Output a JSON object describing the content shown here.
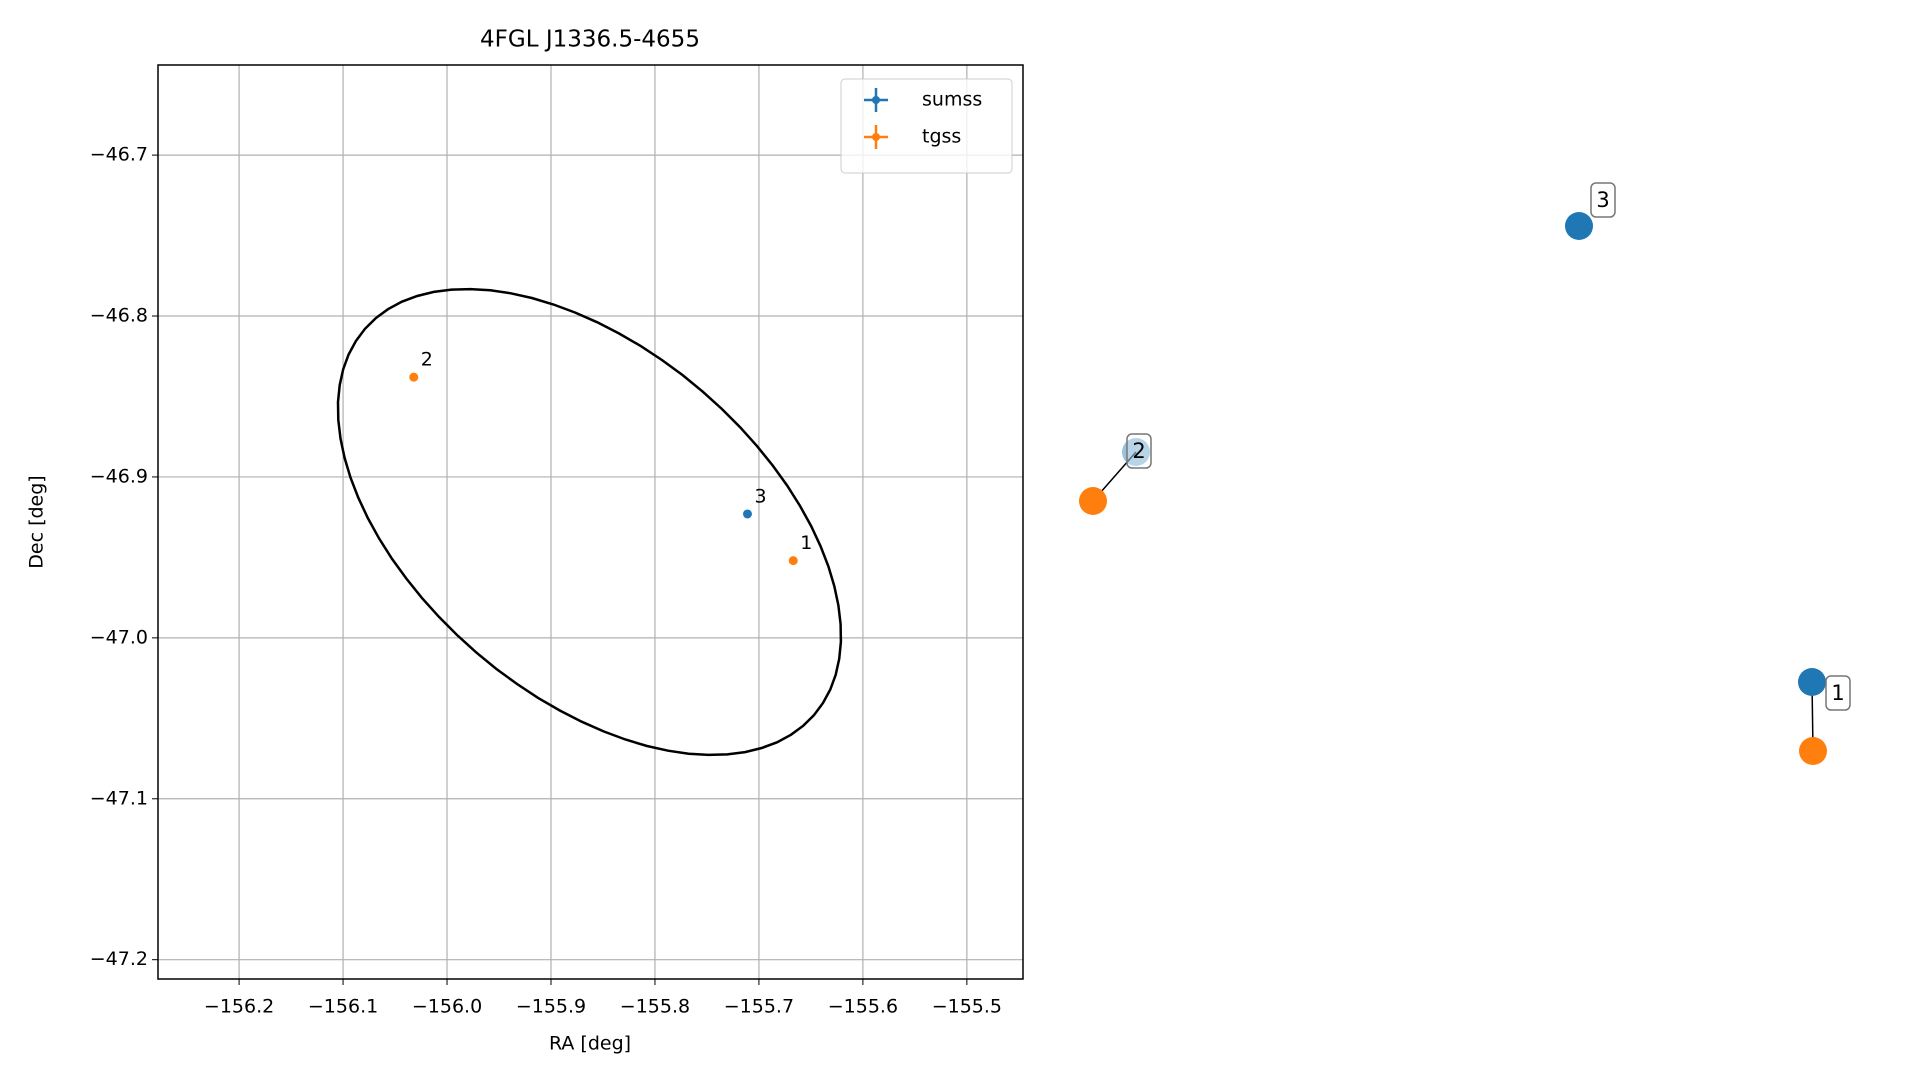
{
  "chart_data": {
    "type": "scatter",
    "title": "4FGL J1336.5-4655",
    "xlabel": "RA [deg]",
    "ylabel": "Dec [deg]",
    "xlim": [
      -156.278,
      -155.446
    ],
    "ylim": [
      -47.212,
      -46.644
    ],
    "xticks": [
      {
        "value": -156.2,
        "label": "−156.2"
      },
      {
        "value": -156.1,
        "label": "−156.1"
      },
      {
        "value": -156.0,
        "label": "−156.0"
      },
      {
        "value": -155.9,
        "label": "−155.9"
      },
      {
        "value": -155.8,
        "label": "−155.8"
      },
      {
        "value": -155.7,
        "label": "−155.7"
      },
      {
        "value": -155.6,
        "label": "−155.6"
      },
      {
        "value": -155.5,
        "label": "−155.5"
      }
    ],
    "yticks": [
      {
        "value": -46.7,
        "label": "−46.7"
      },
      {
        "value": -46.8,
        "label": "−46.8"
      },
      {
        "value": -46.9,
        "label": "−46.9"
      },
      {
        "value": -47.0,
        "label": "−47.0"
      },
      {
        "value": -47.1,
        "label": "−47.1"
      },
      {
        "value": -47.2,
        "label": "−47.2"
      }
    ],
    "grid": true,
    "legend": "upper right",
    "series": [
      {
        "name": "sumss",
        "color": "#1f77b4",
        "x": [
          -155.711
        ],
        "values": [
          -46.923
        ],
        "point_labels": [
          "3"
        ]
      },
      {
        "name": "tgss",
        "color": "#ff7f0e",
        "x": [
          -155.667,
          -156.032
        ],
        "values": [
          -46.952,
          -46.838
        ],
        "point_labels": [
          "1",
          "2"
        ]
      }
    ],
    "ellipse": {
      "center": [
        -155.863,
        -46.928
      ],
      "axis1": [
        0.216,
        -0.12
      ],
      "axis2": [
        -0.109,
        -0.081
      ],
      "color": "#000000"
    },
    "match_graph": {
      "nodes": [
        {
          "label": "1"
        },
        {
          "label": "2"
        },
        {
          "label": "3"
        }
      ]
    }
  }
}
